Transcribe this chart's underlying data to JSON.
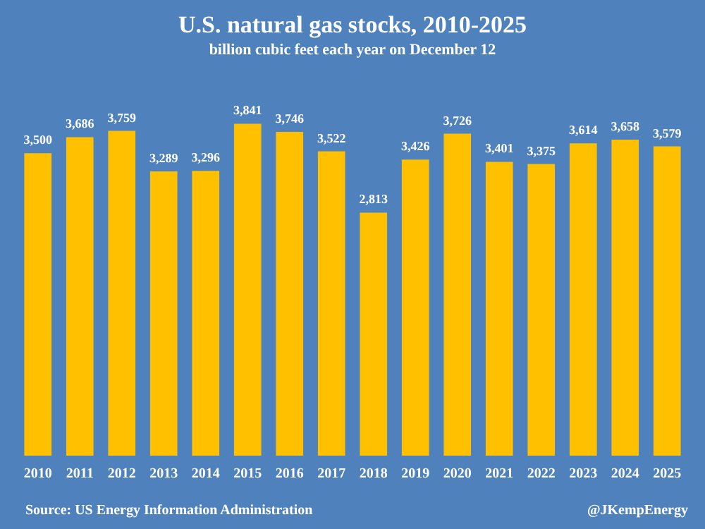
{
  "chart_data": {
    "type": "bar",
    "title": "U.S. natural gas stocks, 2010-2025",
    "subtitle": "billion cubic feet each year on December 12",
    "categories": [
      "2010",
      "2011",
      "2012",
      "2013",
      "2014",
      "2015",
      "2016",
      "2017",
      "2018",
      "2019",
      "2020",
      "2021",
      "2022",
      "2023",
      "2024",
      "2025"
    ],
    "values": [
      3500,
      3686,
      3759,
      3289,
      3296,
      3841,
      3746,
      3522,
      2813,
      3426,
      3726,
      3401,
      3375,
      3614,
      3658,
      3579
    ],
    "value_labels": [
      "3,500",
      "3,686",
      "3,759",
      "3,289",
      "3,296",
      "3,841",
      "3,746",
      "3,522",
      "2,813",
      "3,426",
      "3,726",
      "3,401",
      "3,375",
      "3,614",
      "3,658",
      "3,579"
    ],
    "color": "#ffc000",
    "annotations": [
      "Source: US Energy Information Administration",
      "@JKempEnergy"
    ]
  }
}
